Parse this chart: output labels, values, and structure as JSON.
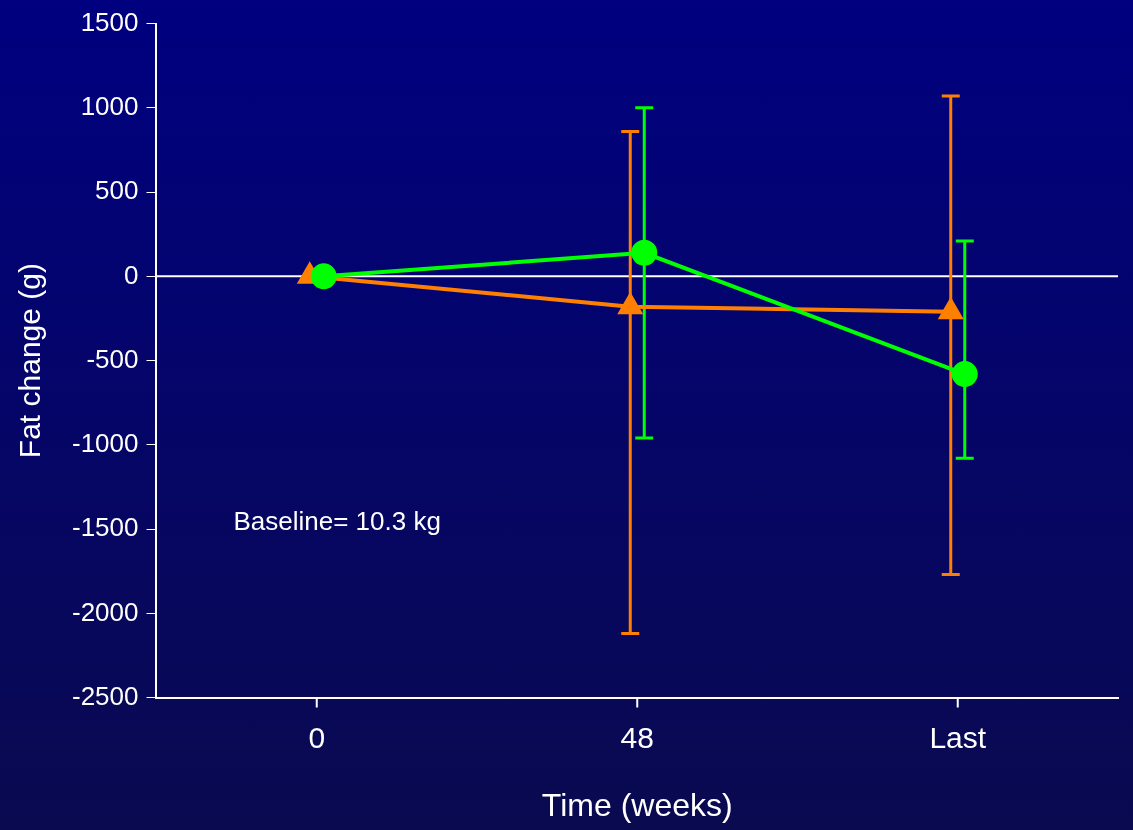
{
  "chart_data": {
    "type": "line",
    "xlabel": "Time (weeks)",
    "ylabel": "Fat change (g)",
    "categories": [
      "0",
      "48",
      "Last"
    ],
    "ylim": [
      -2500,
      1500
    ],
    "yticks": [
      -2500,
      -2000,
      -1500,
      -1000,
      -500,
      0,
      500,
      1000,
      1500
    ],
    "grid": false,
    "legend": false,
    "series": [
      {
        "color": "#00ff00",
        "marker": "circle",
        "values": [
          0,
          140,
          -580
        ],
        "errors": [
          null,
          [
            -960,
            1000
          ],
          [
            -1080,
            210
          ]
        ]
      },
      {
        "color": "#ff8000",
        "marker": "triangle",
        "values": [
          0,
          -180,
          -210
        ],
        "errors": [
          null,
          [
            -2120,
            860
          ],
          [
            -1770,
            1070
          ]
        ]
      }
    ],
    "ref_lines": [
      {
        "axis": "y",
        "value": 0,
        "color": "#ffffff"
      }
    ],
    "annotations": [
      "Baseline= 10.3 kg"
    ]
  }
}
